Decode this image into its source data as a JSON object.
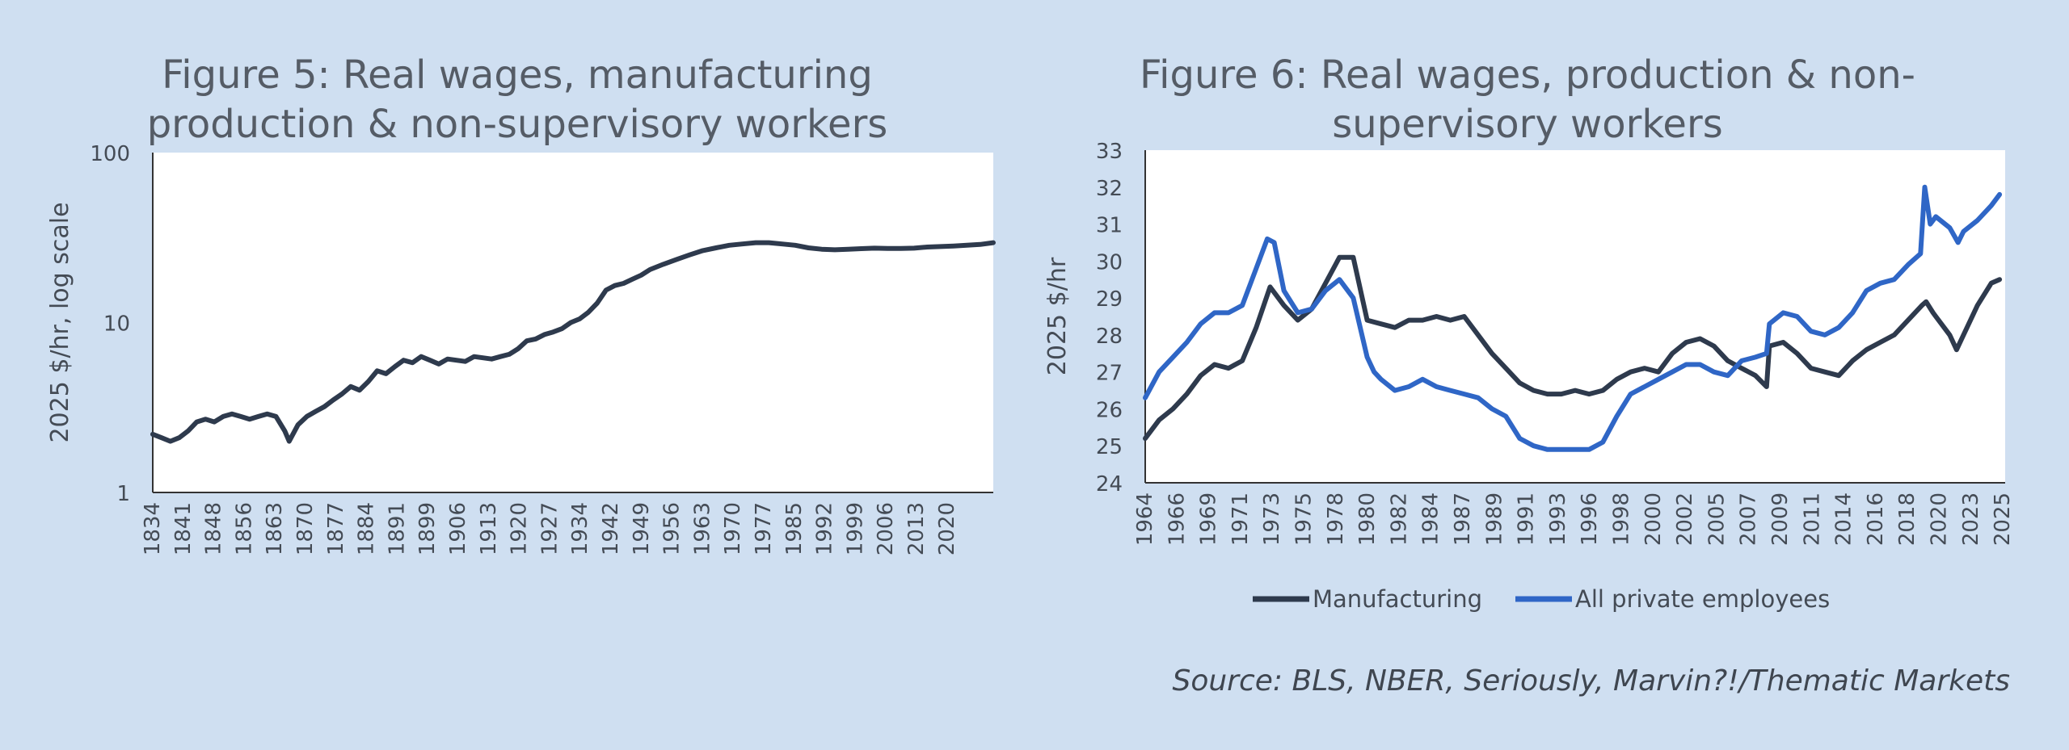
{
  "chart_data": [
    {
      "type": "line",
      "title": "Figure 5: Real wages, manufacturing production & non-supervisory workers",
      "title_lines": [
        "Figure 5: Real wages, manufacturing",
        "production & non-supervisory workers"
      ],
      "xlabel": "",
      "ylabel": "2025 $/hr, log scale",
      "y_scale": "log",
      "ylim": [
        1,
        100
      ],
      "y_ticks": [
        "1",
        "10",
        "100"
      ],
      "xlim": [
        1834,
        2025
      ],
      "x_ticks": [
        "1834",
        "1841",
        "1848",
        "1856",
        "1863",
        "1870",
        "1877",
        "1884",
        "1891",
        "1899",
        "1906",
        "1913",
        "1920",
        "1927",
        "1934",
        "1942",
        "1949",
        "1956",
        "1963",
        "1970",
        "1977",
        "1985",
        "1992",
        "1999",
        "2006",
        "2013",
        "2020"
      ],
      "grid": false,
      "legend": "none",
      "colors": {
        "line": "#2e3a4d",
        "plot_bg": "#ffffff"
      },
      "series": [
        {
          "name": "",
          "x": [
            1834,
            1836,
            1838,
            1840,
            1842,
            1844,
            1846,
            1848,
            1850,
            1852,
            1854,
            1856,
            1858,
            1860,
            1862,
            1864,
            1865,
            1867,
            1869,
            1871,
            1873,
            1875,
            1877,
            1879,
            1881,
            1883,
            1885,
            1887,
            1889,
            1891,
            1893,
            1895,
            1897,
            1899,
            1901,
            1903,
            1905,
            1907,
            1909,
            1911,
            1913,
            1915,
            1917,
            1919,
            1921,
            1923,
            1925,
            1927,
            1929,
            1931,
            1933,
            1935,
            1937,
            1939,
            1941,
            1943,
            1945,
            1947,
            1950,
            1953,
            1956,
            1959,
            1962,
            1965,
            1968,
            1971,
            1974,
            1977,
            1980,
            1983,
            1986,
            1989,
            1992,
            1995,
            1998,
            2001,
            2004,
            2007,
            2010,
            2013,
            2016,
            2019,
            2022,
            2025
          ],
          "y": [
            2.2,
            2.1,
            2.0,
            2.1,
            2.3,
            2.6,
            2.7,
            2.6,
            2.8,
            2.9,
            2.8,
            2.7,
            2.8,
            2.9,
            2.8,
            2.3,
            2.0,
            2.5,
            2.8,
            3.0,
            3.2,
            3.5,
            3.8,
            4.2,
            4.0,
            4.5,
            5.2,
            5.0,
            5.5,
            6.0,
            5.8,
            6.3,
            6.0,
            5.7,
            6.1,
            6.0,
            5.9,
            6.3,
            6.2,
            6.1,
            6.3,
            6.5,
            7.0,
            7.8,
            8.0,
            8.5,
            8.8,
            9.2,
            10.0,
            10.5,
            11.5,
            13.0,
            15.5,
            16.5,
            17.0,
            18.0,
            19.0,
            20.5,
            22.0,
            23.5,
            25.0,
            26.5,
            27.5,
            28.5,
            29.0,
            29.5,
            29.5,
            29.0,
            28.5,
            27.5,
            27.0,
            26.8,
            27.0,
            27.2,
            27.4,
            27.3,
            27.3,
            27.4,
            27.8,
            28.0,
            28.2,
            28.5,
            28.8,
            29.5
          ]
        }
      ]
    },
    {
      "type": "line",
      "title": "Figure 6: Real wages, production & non-supervisory workers",
      "title_lines": [
        "Figure 6: Real wages, production & non-",
        "supervisory workers"
      ],
      "xlabel": "",
      "ylabel": "2025 $/hr",
      "ylim": [
        24,
        33
      ],
      "y_ticks": [
        "24",
        "25",
        "26",
        "27",
        "28",
        "29",
        "30",
        "31",
        "32",
        "33"
      ],
      "xlim": [
        1964,
        2026
      ],
      "x_ticks": [
        "1964",
        "1966",
        "1969",
        "1971",
        "1973",
        "1975",
        "1978",
        "1980",
        "1982",
        "1984",
        "1987",
        "1989",
        "1991",
        "1993",
        "1996",
        "1998",
        "2000",
        "2002",
        "2005",
        "2007",
        "2009",
        "2011",
        "2014",
        "2016",
        "2018",
        "2020",
        "2023",
        "2025"
      ],
      "grid": false,
      "legend": "bottom",
      "colors": {
        "Manufacturing": "#2e3a4d",
        "All private employees": "#2f66c6",
        "plot_bg": "#ffffff"
      },
      "series": [
        {
          "name": "Manufacturing",
          "x": [
            1964,
            1965,
            1966,
            1967,
            1968,
            1969,
            1970,
            1971,
            1972,
            1973,
            1974,
            1975,
            1976,
            1977,
            1978,
            1979,
            1980,
            1981,
            1982,
            1983,
            1984,
            1985,
            1986,
            1987,
            1988,
            1989,
            1990,
            1991,
            1992,
            1993,
            1994,
            1995,
            1996,
            1997,
            1998,
            1999,
            2000,
            2001,
            2002,
            2003,
            2004,
            2005,
            2006,
            2007,
            2008,
            2008.8,
            2009,
            2010,
            2011,
            2012,
            2013,
            2014,
            2015,
            2016,
            2017,
            2018,
            2019,
            2020,
            2020.3,
            2020.8,
            2021,
            2022,
            2022.5,
            2023,
            2024,
            2025,
            2025.6
          ],
          "y": [
            25.2,
            25.7,
            26.0,
            26.4,
            26.9,
            27.2,
            27.1,
            27.3,
            28.2,
            29.3,
            28.8,
            28.4,
            28.7,
            29.4,
            30.1,
            30.1,
            28.4,
            28.3,
            28.2,
            28.4,
            28.4,
            28.5,
            28.4,
            28.5,
            28.0,
            27.5,
            27.1,
            26.7,
            26.5,
            26.4,
            26.4,
            26.5,
            26.4,
            26.5,
            26.8,
            27.0,
            27.1,
            27.0,
            27.5,
            27.8,
            27.9,
            27.7,
            27.3,
            27.1,
            26.9,
            26.6,
            27.7,
            27.8,
            27.5,
            27.1,
            27.0,
            26.9,
            27.3,
            27.6,
            27.8,
            28.0,
            28.4,
            28.8,
            28.9,
            28.6,
            28.5,
            28.0,
            27.6,
            28.0,
            28.8,
            29.4,
            29.5
          ]
        },
        {
          "name": "All private employees",
          "x": [
            1964,
            1965,
            1966,
            1967,
            1968,
            1969,
            1970,
            1971,
            1972,
            1972.8,
            1973.3,
            1974,
            1975,
            1976,
            1977,
            1978,
            1979,
            1980,
            1980.5,
            1981,
            1982,
            1983,
            1984,
            1985,
            1986,
            1987,
            1988,
            1989,
            1990,
            1991,
            1992,
            1993,
            1994,
            1995,
            1996,
            1997,
            1998,
            1999,
            2000,
            2001,
            2002,
            2003,
            2004,
            2005,
            2006,
            2007,
            2008,
            2008.8,
            2009,
            2010,
            2011,
            2012,
            2013,
            2014,
            2015,
            2016,
            2017,
            2018,
            2019,
            2019.9,
            2020.2,
            2020.6,
            2021,
            2022,
            2022.6,
            2023,
            2024,
            2025,
            2025.6
          ],
          "y": [
            26.3,
            27.0,
            27.4,
            27.8,
            28.3,
            28.6,
            28.6,
            28.8,
            29.8,
            30.6,
            30.5,
            29.2,
            28.6,
            28.7,
            29.2,
            29.5,
            29.0,
            27.4,
            27.0,
            26.8,
            26.5,
            26.6,
            26.8,
            26.6,
            26.5,
            26.4,
            26.3,
            26.0,
            25.8,
            25.2,
            25.0,
            24.9,
            24.9,
            24.9,
            24.9,
            25.1,
            25.8,
            26.4,
            26.6,
            26.8,
            27.0,
            27.2,
            27.2,
            27.0,
            26.9,
            27.3,
            27.4,
            27.5,
            28.3,
            28.6,
            28.5,
            28.1,
            28.0,
            28.2,
            28.6,
            29.2,
            29.4,
            29.5,
            29.9,
            30.2,
            32.0,
            31.0,
            31.2,
            30.9,
            30.5,
            30.8,
            31.1,
            31.5,
            31.8
          ]
        }
      ]
    }
  ],
  "source": "Source: BLS, NBER, Seriously, Marvin?!/Thematic Markets"
}
